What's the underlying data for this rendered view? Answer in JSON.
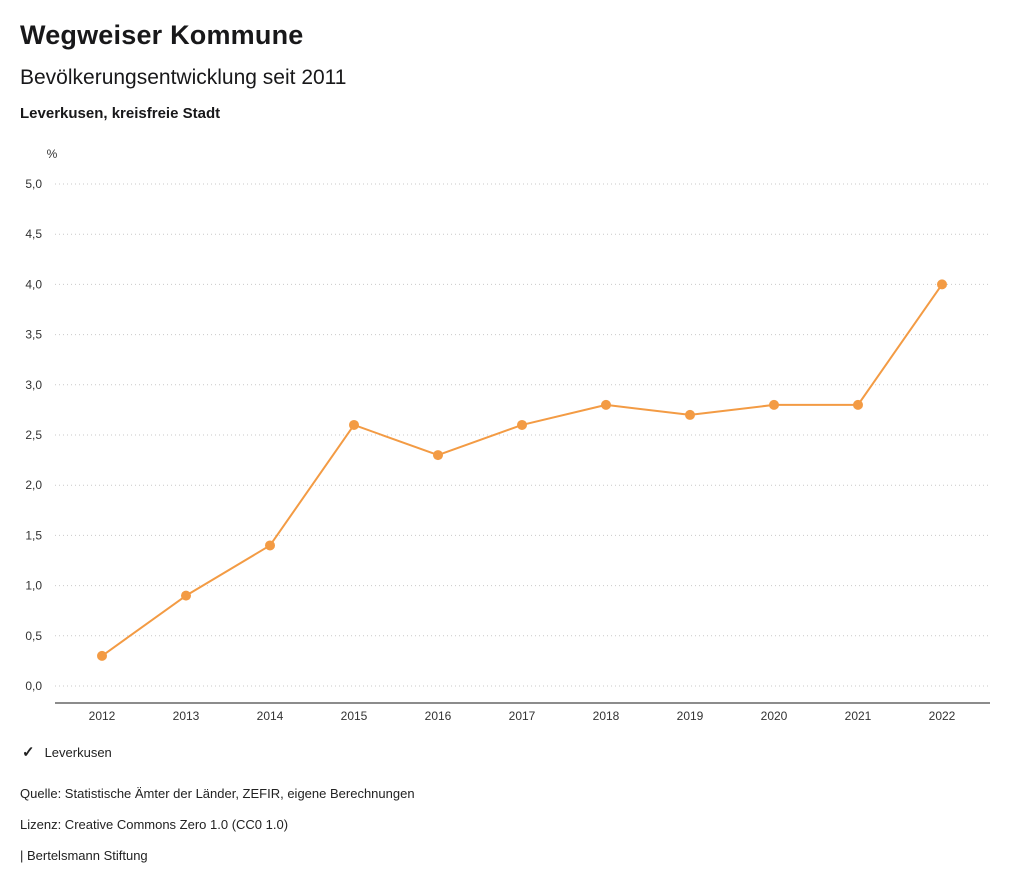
{
  "header": {
    "title": "Wegweiser Kommune",
    "subtitle": "Bevölkerungsentwicklung seit 2011",
    "region": "Leverkusen, kreisfreie Stadt"
  },
  "chart_data": {
    "type": "line",
    "title": "Bevölkerungsentwicklung seit 2011",
    "unit_label": "%",
    "categories": [
      "2012",
      "2013",
      "2014",
      "2015",
      "2016",
      "2017",
      "2018",
      "2019",
      "2020",
      "2021",
      "2022"
    ],
    "series": [
      {
        "name": "Leverkusen",
        "values": [
          0.3,
          0.9,
          1.4,
          2.6,
          2.3,
          2.6,
          2.8,
          2.7,
          2.8,
          2.8,
          4.0
        ],
        "color": "#f39b44"
      }
    ],
    "ylim": [
      0,
      5
    ],
    "ytick_step": 0.5,
    "ytick_labels": [
      "0,0",
      "0,5",
      "1,0",
      "1,5",
      "2,0",
      "2,5",
      "3,0",
      "3,5",
      "4,0",
      "4,5",
      "5,0"
    ],
    "grid": "horizontal-dotted",
    "legend_position": "bottom-left",
    "colors": {
      "series": "#f39b44",
      "gridline": "#c9c9c9",
      "axis": "#1a1a1a",
      "tick_text": "#333333"
    }
  },
  "legend": {
    "marker": "✓",
    "label": "Leverkusen"
  },
  "footer": {
    "source": "Quelle: Statistische Ämter der Länder, ZEFIR, eigene Berechnungen",
    "license": "Lizenz: Creative Commons Zero 1.0 (CC0 1.0)",
    "attribution": "| Bertelsmann Stiftung"
  }
}
